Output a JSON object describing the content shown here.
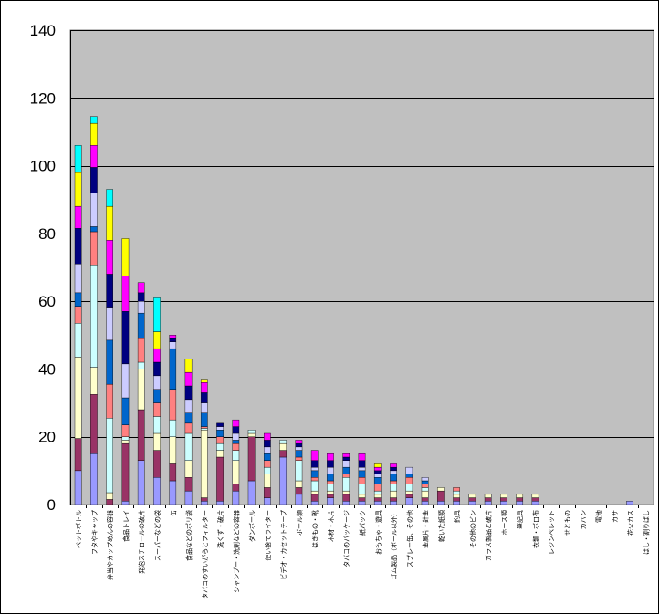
{
  "chart_data": {
    "type": "bar",
    "stacked": true,
    "title": "",
    "xlabel": "",
    "ylabel": "",
    "ylim": [
      0,
      140
    ],
    "yticks": [
      0,
      20,
      40,
      60,
      80,
      100,
      120,
      140
    ],
    "grid": "horizontal",
    "legend": "none",
    "plot_background": "#c0c0c0",
    "categories": [
      "ペットボトル",
      "フタやキャップ",
      "弁当やカップめんの容器",
      "食品トレイ",
      "発泡スチロールの破片",
      "スーパーなどの袋",
      "缶",
      "食品などのポリ袋",
      "タバコのすいがらとフィルター",
      "洗くず・破片",
      "シャンプー・洗剤などの容器",
      "ダンボール",
      "使い捨てライター",
      "ビデオ・カセットテープ",
      "ボール類",
      "はきもの・靴",
      "木材・木片",
      "タバコのパッケージ",
      "紙パック",
      "おもちゃ・遊具",
      "ゴム製品（ボール以外）",
      "スプレー缶、その他",
      "金属片・針金",
      "乾いた紙類",
      "釣具",
      "その他のビン",
      "ガラス製品と破片",
      "ホース類",
      "筆記具",
      "衣類・ボロ布",
      "レジンペレット",
      "せともの",
      "カバン",
      "電池",
      "カサ",
      "花火カス",
      "はし・割りばし"
    ],
    "segment_colors": [
      "#9999ff",
      "#993366",
      "#ffffcc",
      "#ccffff",
      "#ff8080",
      "#0066cc",
      "#ccccff",
      "#000080",
      "#ff00ff",
      "#ffff00",
      "#00ffff"
    ],
    "segments": [
      [
        10,
        9.5,
        24,
        10,
        5,
        4,
        8.5,
        10.5,
        6.5,
        10,
        8
      ],
      [
        15,
        17.5,
        8,
        30,
        10,
        1.5,
        10,
        7.5,
        6.5,
        6.5,
        2
      ],
      [
        0,
        1.5,
        2,
        22,
        10,
        13,
        9.5,
        10,
        10,
        10,
        5
      ],
      [
        1,
        17,
        1,
        1,
        3.5,
        8,
        10,
        15.5,
        10.5,
        11
      ],
      [
        13,
        15,
        12,
        2,
        7,
        7.5,
        3.5,
        2.5,
        3
      ],
      [
        8,
        8,
        5,
        5,
        4,
        4,
        4,
        4,
        4,
        5,
        10
      ],
      [
        7,
        5,
        8,
        5,
        9,
        12,
        2,
        1,
        1
      ],
      [
        4,
        4,
        5,
        8,
        3,
        3,
        4,
        4,
        4,
        4
      ],
      [
        1,
        1,
        20,
        0.5,
        0.5,
        4,
        3,
        3,
        3,
        1
      ],
      [
        1,
        13,
        2,
        2,
        2,
        2,
        1,
        1
      ],
      [
        4,
        2,
        7,
        3,
        2,
        1,
        2,
        2,
        2
      ],
      [
        7,
        13,
        1,
        1
      ],
      [
        2,
        3,
        4,
        2,
        2,
        2,
        2,
        2,
        2
      ],
      [
        14,
        2,
        2,
        1
      ],
      [
        3,
        2,
        2,
        6,
        1,
        2,
        1,
        1,
        1
      ],
      [
        1,
        2,
        1,
        3,
        1,
        2,
        1,
        2,
        3
      ],
      [
        2,
        1,
        1,
        2,
        1,
        2,
        2,
        2,
        2
      ],
      [
        1,
        2,
        1,
        4,
        1,
        2,
        2,
        1,
        1
      ],
      [
        1,
        1,
        1,
        3,
        2,
        2,
        1,
        2,
        2
      ],
      [
        1,
        1,
        1,
        1,
        2,
        2,
        1,
        1,
        1,
        1
      ],
      [
        1,
        1,
        2,
        2,
        1,
        2,
        1,
        1,
        1
      ],
      [
        2,
        1,
        1,
        2,
        2,
        1,
        2
      ],
      [
        1,
        1,
        2,
        1,
        1,
        1,
        1
      ],
      [
        1,
        3,
        1
      ],
      [
        1,
        1,
        1,
        1,
        1
      ],
      [
        1,
        1,
        1
      ],
      [
        1,
        1,
        1
      ],
      [
        1,
        1,
        1
      ],
      [
        1,
        1,
        1
      ],
      [
        1,
        1,
        1
      ],
      [
        0
      ],
      [
        0
      ],
      [
        0
      ],
      [
        0
      ],
      [
        0
      ],
      [
        1
      ],
      [
        0
      ]
    ]
  }
}
